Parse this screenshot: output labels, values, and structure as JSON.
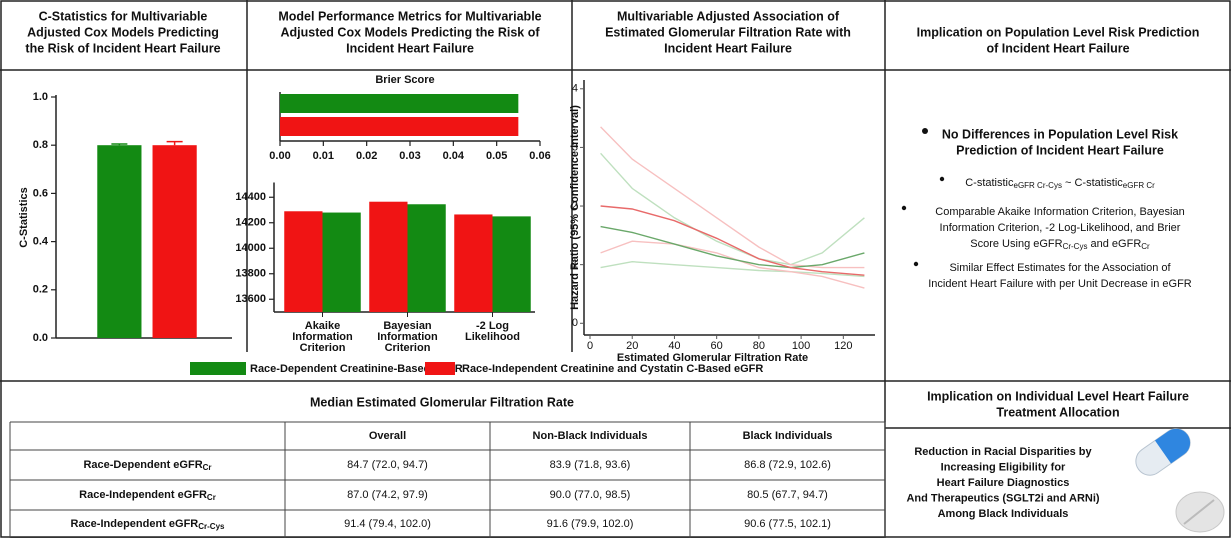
{
  "chart_data": [
    {
      "type": "bar",
      "title": [
        "C-Statistics for Multivariable",
        "Adjusted Cox Models Predicting",
        "the Risk of Incident Heart Failure"
      ],
      "ylabel": "C-Statistics",
      "categories": [
        null
      ],
      "series": [
        {
          "name": "Race-Dependent Creatinine-Based eGFR",
          "color": "#138a13",
          "values": [
            0.8
          ],
          "errors": [
            0.005
          ]
        },
        {
          "name": "Race-Independent Creatinine and Cystatin C-Based eGFR",
          "color": "#f01414",
          "values": [
            0.8
          ],
          "errors": [
            0.015
          ]
        }
      ],
      "ylim": [
        0,
        1
      ],
      "yticks": [
        {
          "value": 0,
          "label": "0.0"
        },
        0.2,
        0.4,
        0.6,
        0.8,
        {
          "value": 1,
          "label": "1.0"
        }
      ]
    },
    {
      "type": "hbar",
      "title": [
        "Model Performance Metrics for Multivariable",
        "Adjusted Cox Models Predicting the Risk of",
        "Incident Heart Failure"
      ],
      "subtitle": "Brier Score",
      "series": [
        {
          "color": "#138a13",
          "values": [
            0.055
          ]
        },
        {
          "color": "#f01414",
          "values": [
            0.055
          ]
        }
      ],
      "xlim": [
        0,
        0.06
      ],
      "xticks": [
        {
          "value": 0,
          "label": "0.00"
        },
        0.01,
        0.02,
        0.03,
        0.04,
        0.05,
        0.06
      ]
    },
    {
      "type": "bar",
      "categories": [
        [
          "Akaike",
          "Information",
          "Criterion"
        ],
        [
          "Bayesian",
          "Information",
          "Criterion"
        ],
        [
          "-2 Log",
          "Likelihood"
        ]
      ],
      "series": [
        {
          "color": "#f01414",
          "values": [
            14290,
            14365,
            14265
          ]
        },
        {
          "color": "#138a13",
          "values": [
            14280,
            14345,
            14250
          ]
        }
      ],
      "ylim": [
        13500,
        14500
      ],
      "yticks": [
        13600,
        13800,
        14000,
        14200,
        14400
      ]
    },
    {
      "type": "line",
      "title": [
        "Multivariable Adjusted Association of",
        "Estimated Glomerular Filtration Rate with",
        "Incident Heart Failure"
      ],
      "xlabel": "Estimated Glomerular Filtration Rate",
      "ylabel": "Hazard Ratio (95% Confidence Interval)",
      "x": [
        5,
        20,
        40,
        60,
        80,
        95,
        110,
        130
      ],
      "series": [
        {
          "color": "#bfe0bf",
          "values": [
            2.9,
            2.3,
            1.8,
            1.4,
            1.1,
            1.0,
            1.2,
            1.8
          ]
        },
        {
          "color": "#bfe0bf",
          "values": [
            0.95,
            1.05,
            1.0,
            0.95,
            0.9,
            0.88,
            0.85,
            0.8
          ]
        },
        {
          "color": "#f7c0c0",
          "values": [
            3.35,
            2.8,
            2.3,
            1.8,
            1.3,
            1.0,
            0.95,
            0.95
          ]
        },
        {
          "color": "#f7c0c0",
          "values": [
            1.2,
            1.4,
            1.35,
            1.2,
            0.95,
            0.88,
            0.8,
            0.6
          ]
        },
        {
          "color": "#6aa86a",
          "values": [
            1.65,
            1.55,
            1.35,
            1.15,
            1.0,
            0.95,
            1.0,
            1.2
          ]
        },
        {
          "color": "#e86a6a",
          "values": [
            2.0,
            1.95,
            1.75,
            1.45,
            1.1,
            0.95,
            0.88,
            0.82
          ]
        }
      ],
      "xlim": [
        0,
        135
      ],
      "xticks": [
        0,
        20,
        40,
        60,
        80,
        100,
        120
      ],
      "ylim": [
        -0.2,
        4.15
      ],
      "yticks": [
        0,
        1,
        2,
        3,
        4
      ]
    }
  ],
  "population": {
    "title": [
      "Implication on Population Level Risk Prediction",
      "of Incident Heart Failure"
    ],
    "bullets": [
      [
        "No Differences in Population Level Risk",
        "Prediction of Incident Heart Failure"
      ],
      [
        [
          "C-statistic",
          "eGFR Cr-Cys",
          " ~ C-statistic",
          "eGFR Cr"
        ]
      ],
      [
        "Comparable Akaike Information Criterion, Bayesian",
        "Information Criterion, -2 Log-Likelihood, and Brier",
        [
          "Score Using eGFR",
          "Cr-Cys",
          " and eGFR",
          "Cr"
        ]
      ],
      [
        "Similar Effect Estimates for the Association of",
        "Incident Heart Failure with per Unit Decrease in eGFR"
      ]
    ]
  },
  "table": {
    "title": "Median Estimated Glomerular Filtration Rate",
    "columns": [
      "Overall",
      "Non-Black Individuals",
      "Black Individuals"
    ],
    "rows": [
      {
        "label": [
          "Race-Dependent eGFR",
          "Cr"
        ],
        "cells": [
          "84.7 (72.0, 94.7)",
          "83.9 (71.8, 93.6)",
          "86.8 (72.9, 102.6)"
        ]
      },
      {
        "label": [
          "Race-Independent eGFR",
          "Cr"
        ],
        "cells": [
          "87.0 (74.2, 97.9)",
          "90.0 (77.0, 98.5)",
          "80.5 (67.7, 94.7)"
        ]
      },
      {
        "label": [
          "Race-Independent eGFR",
          "Cr-Cys"
        ],
        "cells": [
          "91.4 (79.4, 102.0)",
          "91.6 (79.9, 102.0)",
          "90.6 (77.5, 102.1)"
        ]
      }
    ]
  },
  "individual": {
    "title": [
      "Implication on Individual Level Heart Failure",
      "Treatment Allocation"
    ],
    "text": [
      "Reduction in Racial Disparities by",
      "Increasing Eligibility for",
      "Heart Failure Diagnostics",
      "And Therapeutics (SGLT2i and ARNi)",
      "Among Black Individuals"
    ]
  }
}
